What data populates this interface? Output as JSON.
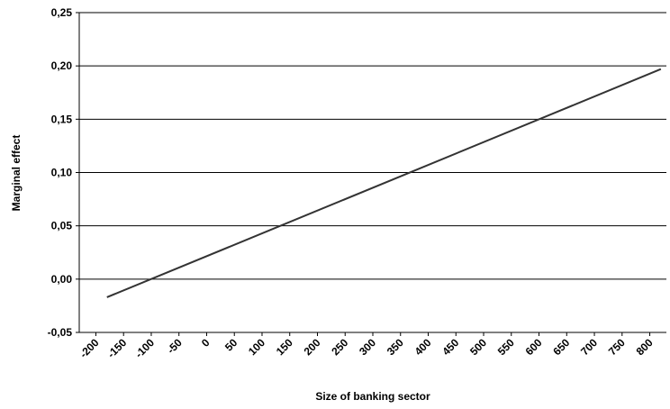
{
  "chart_data": {
    "type": "line",
    "x_label": "Size of banking sector",
    "y_label": "Marginal effect",
    "x": [
      -180,
      820
    ],
    "series": [
      {
        "color": "#333333",
        "values": [
          -0.017,
          0.197
        ]
      }
    ],
    "xlim": [
      -230,
      830
    ],
    "xticks": [
      -200,
      -150,
      -100,
      -50,
      0,
      50,
      100,
      150,
      200,
      250,
      300,
      350,
      400,
      450,
      500,
      550,
      600,
      650,
      700,
      750,
      800
    ],
    "ylim": [
      -0.05,
      0.25
    ],
    "yticks": [
      {
        "value": -0.05,
        "label": "-0,05"
      },
      {
        "value": 0,
        "label": "0,00"
      },
      {
        "value": 0.05,
        "label": "0,05"
      },
      {
        "value": 0.1,
        "label": "0,10"
      },
      {
        "value": 0.15,
        "label": "0,15"
      },
      {
        "value": 0.2,
        "label": "0,20"
      },
      {
        "value": 0.25,
        "label": "0,25"
      }
    ],
    "grid": true
  }
}
